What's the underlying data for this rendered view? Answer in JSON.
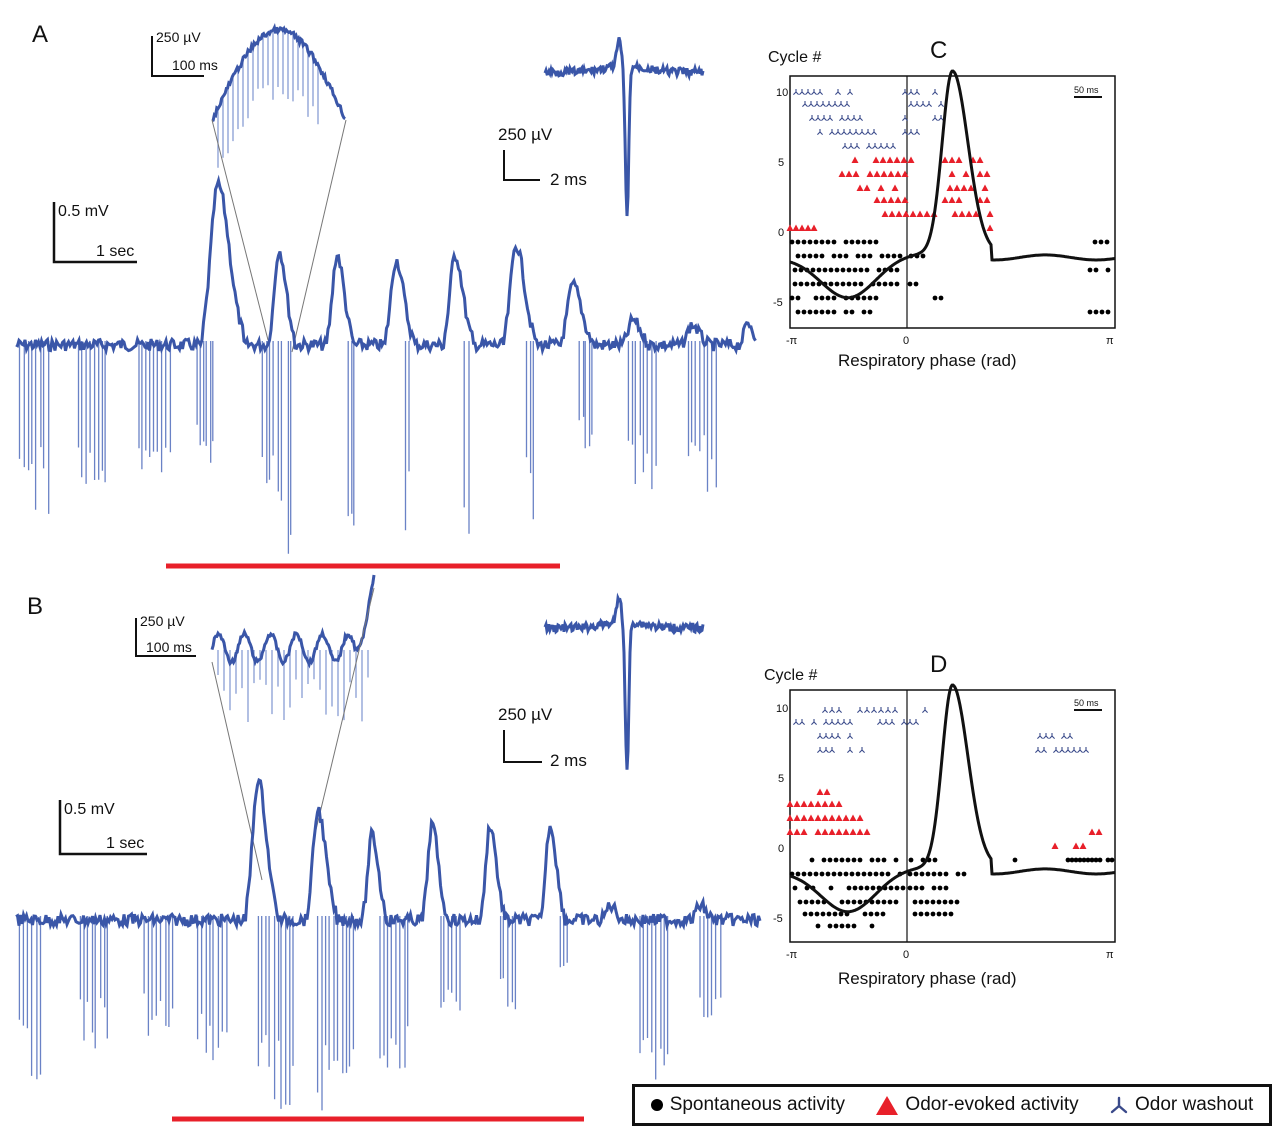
{
  "panels": {
    "A": {
      "label": "A",
      "inset_scale": {
        "v": "250 µV",
        "t": "100 ms"
      },
      "spike_scale": {
        "v": "250 µV",
        "t": "2 ms"
      },
      "trace_scale": {
        "v": "0.5 mV",
        "t": "1 sec"
      }
    },
    "B": {
      "label": "B",
      "inset_scale": {
        "v": "250 µV",
        "t": "100 ms"
      },
      "spike_scale": {
        "v": "250 µV",
        "t": "2 ms"
      },
      "trace_scale": {
        "v": "0.5 mV",
        "t": "1 sec"
      }
    },
    "C": {
      "label": "C",
      "ylabel": "Cycle #",
      "xlabel": "Respiratory phase (rad)",
      "scalebar": "50 ms",
      "yticks": [
        "10",
        "5",
        "0",
        "-5"
      ],
      "xticks": [
        "-π",
        "0",
        "π"
      ]
    },
    "D": {
      "label": "D",
      "ylabel": "Cycle #",
      "xlabel": "Respiratory phase (rad)",
      "scalebar": "50 ms",
      "yticks": [
        "10",
        "5",
        "0",
        "-5"
      ],
      "xticks": [
        "-π",
        "0",
        "π"
      ]
    }
  },
  "legend": {
    "spontaneous": "Spontaneous activity",
    "odor_evoked": "Odor-evoked activity",
    "washout": "Odor washout"
  },
  "colors": {
    "trace": "#3a56a8",
    "trace_light": "#7f95d0",
    "odor_bar": "#e8202a",
    "odor_evoked": "#e8202a",
    "spontaneous": "#000000",
    "washout": "#3a4a8a"
  }
}
